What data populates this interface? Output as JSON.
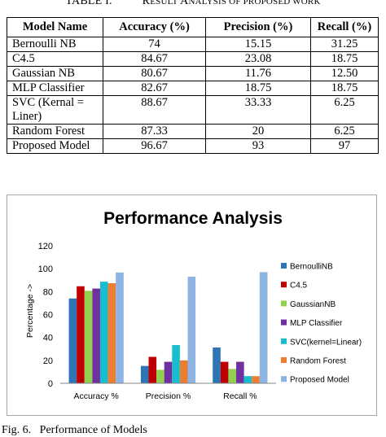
{
  "table": {
    "caption_number": "TABLE I.",
    "caption_initial": "R",
    "caption_rest": "ESULT ",
    "caption_initial2": "A",
    "caption_rest2": "NALYSIS OF PROPOSED WORK",
    "headers": [
      "Model Name",
      "Accuracy (%)",
      "Precision (%)",
      "Recall (%)"
    ],
    "rows": [
      {
        "name": "Bernoulli NB",
        "accuracy": "74",
        "precision": "15.15",
        "recall": "31.25"
      },
      {
        "name": "C4.5",
        "accuracy": "84.67",
        "precision": "23.08",
        "recall": "18.75"
      },
      {
        "name": "Gaussian NB",
        "accuracy": "80.67",
        "precision": "11.76",
        "recall": "12.50"
      },
      {
        "name": "MLP Classifier",
        "accuracy": "82.67",
        "precision": "18.75",
        "recall": "18.75"
      },
      {
        "name": "SVC (Kernal = Liner)",
        "accuracy": "88.67",
        "precision": "33.33",
        "recall": "6.25"
      },
      {
        "name": "Random Forest",
        "accuracy": "87.33",
        "precision": "20",
        "recall": "6.25"
      },
      {
        "name": "Proposed Model",
        "accuracy": "96.67",
        "precision": "93",
        "recall": "97"
      }
    ]
  },
  "chart_data": {
    "type": "bar",
    "title": "Performance Analysis",
    "xlabel": "",
    "ylabel": "Percentage ->",
    "ylim": [
      0,
      120
    ],
    "yticks": [
      0,
      20,
      40,
      60,
      80,
      100,
      120
    ],
    "grid": false,
    "legend_position": "right",
    "categories": [
      "Accuracy %",
      "Precision %",
      "Recall %"
    ],
    "series": [
      {
        "name": "BernoulliNB",
        "color": "#2e75b6",
        "values": [
          74,
          15.15,
          31.25
        ]
      },
      {
        "name": "C4.5",
        "color": "#c00000",
        "values": [
          84.67,
          23.08,
          18.75
        ]
      },
      {
        "name": "GaussianNB",
        "color": "#92d050",
        "values": [
          80.67,
          11.76,
          12.5
        ]
      },
      {
        "name": "MLP Classifier",
        "color": "#7030a0",
        "values": [
          82.67,
          18.75,
          18.75
        ]
      },
      {
        "name": "SVC(kernel=Linear)",
        "color": "#17becf",
        "values": [
          88.67,
          33.33,
          6.25
        ]
      },
      {
        "name": "Random Forest",
        "color": "#ed7d31",
        "values": [
          87.33,
          20,
          6.25
        ]
      },
      {
        "name": "Proposed Model",
        "color": "#8eb4e3",
        "values": [
          96.67,
          93,
          97
        ]
      }
    ]
  },
  "figure_caption": "Fig. 6.   Performance of Models"
}
